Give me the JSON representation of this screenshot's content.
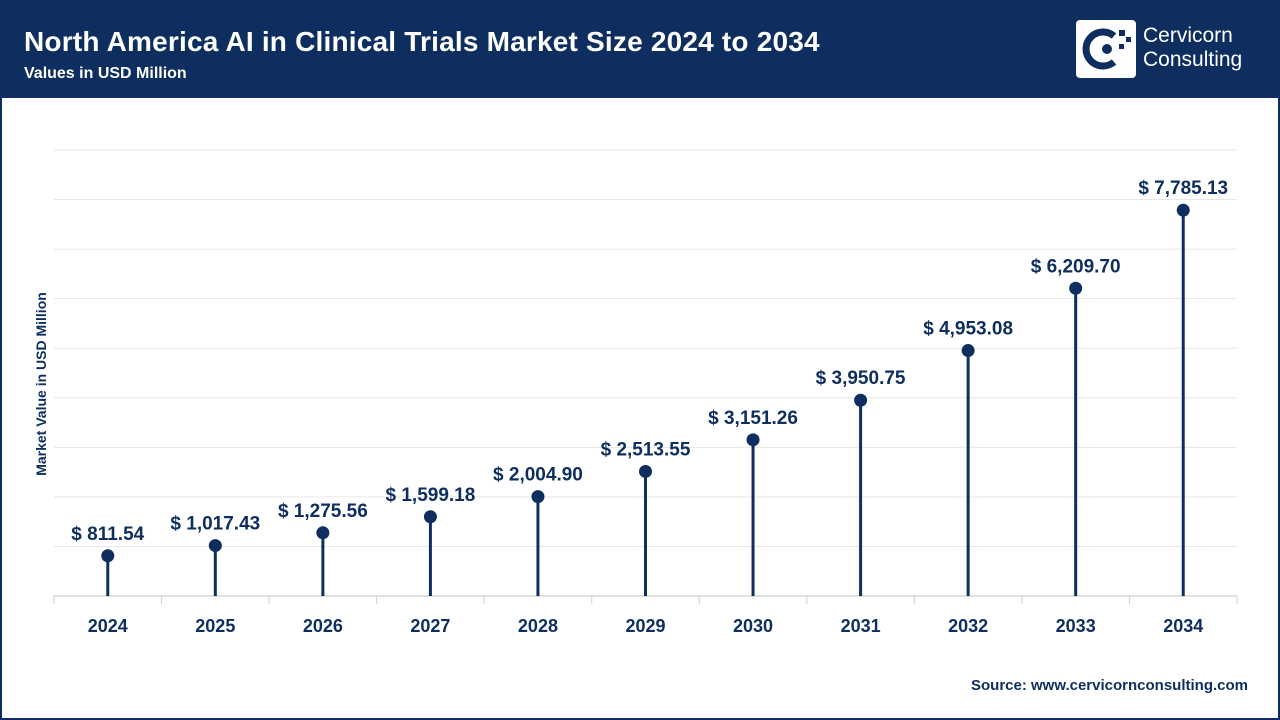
{
  "header": {
    "title": "North America AI in Clinical Trials Market Size 2024 to 2034",
    "subtitle": "Values in USD Million",
    "brand_line1": "Cervicorn",
    "brand_line2": "Consulting"
  },
  "footer": {
    "source": "Source: www.cervicornconsulting.com"
  },
  "colors": {
    "primary": "#0d2e5e",
    "grid": "#e6e6e6",
    "background": "#ffffff"
  },
  "chart_data": {
    "type": "scatter",
    "style": "lollipop",
    "title": "North America AI in Clinical Trials Market Size 2024 to 2034",
    "subtitle": "Values in USD Million",
    "xlabel": "",
    "ylabel": "Market Value in USD Million",
    "categories": [
      "2024",
      "2025",
      "2026",
      "2027",
      "2028",
      "2029",
      "2030",
      "2031",
      "2032",
      "2033",
      "2034"
    ],
    "values": [
      811.54,
      1017.43,
      1275.56,
      1599.18,
      2004.9,
      2513.55,
      3151.26,
      3950.75,
      4953.08,
      6209.7,
      7785.13
    ],
    "labels": [
      "$ 811.54",
      "$ 1,017.43",
      "$ 1,275.56",
      "$ 1,599.18",
      "$ 2,004.90",
      "$ 2,513.55",
      "$ 3,151.26",
      "$ 3,950.75",
      "$ 4,953.08",
      "$ 6,209.70",
      "$ 7,785.13"
    ],
    "ylim": [
      0,
      9000
    ],
    "grid": true,
    "legend": "none"
  }
}
